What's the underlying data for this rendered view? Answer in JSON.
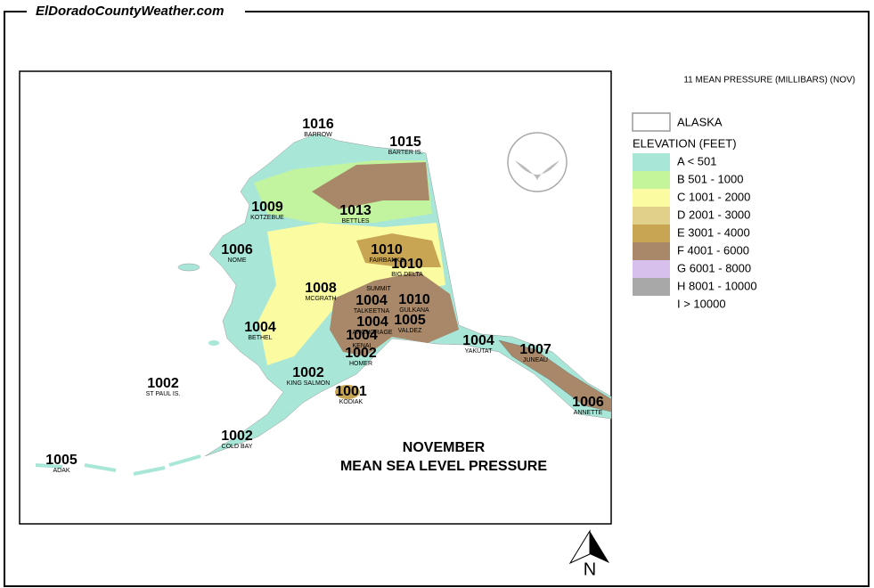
{
  "site": "ElDoradoCountyWeather.com",
  "map_heading": "11 MEAN PRESSURE (MILLIBARS) (NOV)",
  "title": [
    "NOVEMBER",
    "MEAN SEA LEVEL PRESSURE"
  ],
  "legend": {
    "boundary": "ALASKA",
    "elevation_title": "ELEVATION (FEET)",
    "items": [
      {
        "label": "A < 501",
        "color": "#a8e6d8"
      },
      {
        "label": "B 501 - 1000",
        "color": "#c4f59a"
      },
      {
        "label": "C 1001 - 2000",
        "color": "#fbfca2"
      },
      {
        "label": "D 2001 - 3000",
        "color": "#e0d08a"
      },
      {
        "label": "E 3001 - 4000",
        "color": "#c8a552"
      },
      {
        "label": "F 4001 - 6000",
        "color": "#a88868"
      },
      {
        "label": "G 6001 - 8000",
        "color": "#d8c0ec"
      },
      {
        "label": "H 8001 - 10000",
        "color": "#a8a8a8"
      },
      {
        "label": "I > 10000"
      }
    ]
  },
  "stations": [
    {
      "pressure": 1016,
      "name": "BARROW"
    },
    {
      "pressure": 1015,
      "name": "BARTER IS."
    },
    {
      "pressure": 1009,
      "name": "KOTZEBUE"
    },
    {
      "pressure": 1013,
      "name": "BETTLES"
    },
    {
      "pressure": 1006,
      "name": "NOME"
    },
    {
      "pressure": 1010,
      "name": "FAIRBANKS"
    },
    {
      "pressure": 1010,
      "name": "BIG DELTA"
    },
    {
      "pressure": 1008,
      "name": "MCGRATH"
    },
    {
      "name": "SUMMIT"
    },
    {
      "pressure": 1004,
      "name": "TALKEETNA"
    },
    {
      "pressure": 1010,
      "name": "GULKANA"
    },
    {
      "pressure": 1004,
      "name": "BETHEL"
    },
    {
      "pressure": 1004,
      "name": "ANCHORAGE"
    },
    {
      "pressure": 1005,
      "name": "VALDEZ"
    },
    {
      "pressure": 1004,
      "name": "KENAI"
    },
    {
      "pressure": 1004,
      "name": "YAKUTAT"
    },
    {
      "pressure": 1007,
      "name": "JUNEAU"
    },
    {
      "pressure": 1002,
      "name": "HOMER"
    },
    {
      "pressure": 1002,
      "name": "ST PAUL IS."
    },
    {
      "pressure": 1002,
      "name": "KING SALMON"
    },
    {
      "pressure": 1001,
      "name": "KODIAK"
    },
    {
      "pressure": 1006,
      "name": "ANNETTE"
    },
    {
      "pressure": 1002,
      "name": "COLD BAY"
    },
    {
      "pressure": 1005,
      "name": "ADAK"
    }
  ],
  "north": "N"
}
